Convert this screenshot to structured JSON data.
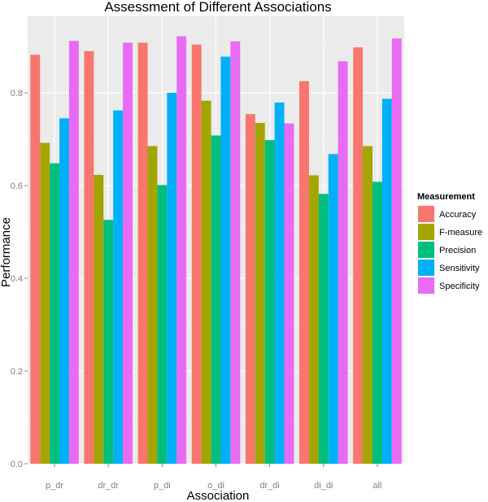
{
  "chart_data": {
    "type": "bar",
    "title": "Assessment of Different Associations",
    "xlabel": "Association",
    "ylabel": "Performance",
    "ylim": [
      0,
      0.965
    ],
    "yticks": [
      0.0,
      0.2,
      0.4,
      0.6,
      0.8
    ],
    "ytick_labels": [
      "0.0",
      "0.2",
      "0.4",
      "0.6",
      "0.8"
    ],
    "grid": true,
    "categories": [
      "p_dr",
      "dr_dr",
      "p_di",
      "o_di",
      "dr_di",
      "di_di",
      "all"
    ],
    "series": [
      {
        "name": "Accuracy",
        "color": "#F8766D",
        "values": [
          0.882,
          0.89,
          0.908,
          0.904,
          0.754,
          0.825,
          0.898
        ]
      },
      {
        "name": "F-measure",
        "color": "#A3A500",
        "values": [
          0.692,
          0.623,
          0.685,
          0.783,
          0.735,
          0.622,
          0.685
        ]
      },
      {
        "name": "Precision",
        "color": "#00BF7D",
        "values": [
          0.648,
          0.526,
          0.601,
          0.708,
          0.698,
          0.582,
          0.608
        ]
      },
      {
        "name": "Sensitivity",
        "color": "#00B0F6",
        "values": [
          0.745,
          0.762,
          0.8,
          0.878,
          0.779,
          0.668,
          0.787
        ]
      },
      {
        "name": "Specificity",
        "color": "#E76BF3",
        "values": [
          0.912,
          0.908,
          0.922,
          0.911,
          0.734,
          0.868,
          0.917
        ]
      }
    ],
    "legend": {
      "title": "Measurement",
      "position": "right"
    }
  }
}
